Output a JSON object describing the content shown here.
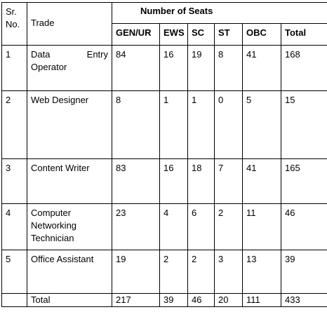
{
  "table": {
    "sr_header": "Sr. No.",
    "trade_header": "Trade",
    "group_header": "Number of Seats",
    "columns": [
      "GEN/UR",
      "EWS",
      "SC",
      "ST",
      "OBC",
      "Total"
    ],
    "rows": [
      {
        "sr": "1",
        "trade": "Data Entry Operator",
        "trade_line1_a": "Data",
        "trade_line1_b": "Entry",
        "trade_line2": "Operator",
        "values": [
          "84",
          "16",
          "19",
          "8",
          "41",
          "168"
        ]
      },
      {
        "sr": "2",
        "trade": "Web Designer",
        "values": [
          "8",
          "1",
          "1",
          "0",
          "5",
          "15"
        ]
      },
      {
        "sr": "3",
        "trade": "Content Writer",
        "values": [
          "83",
          "16",
          "18",
          "7",
          "41",
          "165"
        ]
      },
      {
        "sr": "4",
        "trade": "Computer Networking Technician",
        "values": [
          "23",
          "4",
          "6",
          "2",
          "11",
          "46"
        ]
      },
      {
        "sr": "5",
        "trade": "Office Assistant",
        "values": [
          "19",
          "2",
          "2",
          "3",
          "13",
          "39"
        ]
      }
    ],
    "total_row": {
      "label": "Total",
      "values": [
        "217",
        "39",
        "46",
        "20",
        "111",
        "433"
      ]
    }
  }
}
